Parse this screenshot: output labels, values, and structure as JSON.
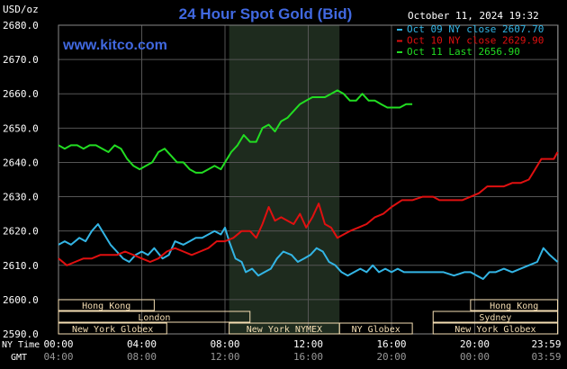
{
  "header": {
    "units": "USD/oz",
    "title": "24 Hour Spot Gold (Bid)",
    "timestamp": "October 11, 2024 19:32",
    "watermark": "www.kitco.com"
  },
  "colors": {
    "background": "#000000",
    "grid": "#555555",
    "title": "#4169e1",
    "watermark": "#4169e1",
    "axis_text": "#ffffff",
    "session_box": "#f5deb3",
    "nymex_shade": "#1e2b1e"
  },
  "legend": {
    "position": "top-right",
    "items": [
      {
        "label": "Oct 09 NY close 2607.70",
        "color": "#33b5e5"
      },
      {
        "label": "Oct 10 NY close 2629.90",
        "color": "#e01010"
      },
      {
        "label": "Oct 11 Last 2656.90",
        "color": "#22dd22"
      }
    ]
  },
  "time_rows": {
    "ny_label": "NY Time",
    "gmt_label": "GMT",
    "ny_ticks": [
      "00:00",
      "04:00",
      "08:00",
      "12:00",
      "16:00",
      "20:00",
      "23:59"
    ],
    "gmt_ticks": [
      "04:00",
      "08:00",
      "12:00",
      "16:00",
      "20:00",
      "00:00",
      "03:59"
    ]
  },
  "sessions": [
    {
      "label": "Hong Kong",
      "start_h": 0,
      "end_h": 4.6,
      "row": 0
    },
    {
      "label": "London",
      "start_h": 0,
      "end_h": 9.2,
      "row": 1
    },
    {
      "label": "New York Globex",
      "start_h": 0,
      "end_h": 5.2,
      "row": 2
    },
    {
      "label": "New York NYMEX",
      "start_h": 8.2,
      "end_h": 13.5,
      "row": 2
    },
    {
      "label": "NY Globex",
      "start_h": 13.5,
      "end_h": 17.0,
      "row": 2
    },
    {
      "label": "Hong Kong",
      "start_h": 19.8,
      "end_h": 23.98,
      "row": 0
    },
    {
      "label": "Sydney",
      "start_h": 18.0,
      "end_h": 23.98,
      "row": 1
    },
    {
      "label": "New York Globex",
      "start_h": 18.0,
      "end_h": 23.98,
      "row": 2
    }
  ],
  "chart_data": {
    "type": "line",
    "title": "24 Hour Spot Gold (Bid)",
    "ylabel": "USD/oz",
    "xlim": [
      0,
      24
    ],
    "ylim": [
      2590,
      2680
    ],
    "y_ticks": [
      2590,
      2600,
      2610,
      2620,
      2630,
      2640,
      2650,
      2660,
      2670,
      2680
    ],
    "y_tick_labels": [
      "2590.0",
      "2600.0",
      "2610.0",
      "2620.0",
      "2630.0",
      "2640.0",
      "2650.0",
      "2660.0",
      "2670.0",
      "2680.0"
    ],
    "grid": true,
    "legend_position": "top-right",
    "nymex_session_hours": [
      8.2,
      13.5
    ],
    "series": [
      {
        "name": "Oct 09 NY close 2607.70",
        "color": "#33b5e5",
        "x": [
          0,
          0.3,
          0.6,
          1.0,
          1.3,
          1.6,
          1.9,
          2.2,
          2.5,
          2.8,
          3.1,
          3.4,
          3.7,
          4.0,
          4.3,
          4.6,
          5.0,
          5.3,
          5.6,
          6.0,
          6.3,
          6.6,
          6.9,
          7.2,
          7.5,
          7.8,
          8.0,
          8.2,
          8.5,
          8.8,
          9.0,
          9.3,
          9.6,
          9.9,
          10.2,
          10.5,
          10.8,
          11.2,
          11.5,
          11.8,
          12.1,
          12.4,
          12.7,
          13.0,
          13.3,
          13.6,
          13.9,
          14.2,
          14.5,
          14.8,
          15.1,
          15.4,
          15.7,
          16.0,
          16.3,
          16.6,
          17.0,
          17.5,
          18.0,
          18.5,
          19.0,
          19.5,
          19.8,
          20.1,
          20.4,
          20.7,
          21.0,
          21.4,
          21.8,
          22.2,
          22.6,
          23.0,
          23.3,
          23.6,
          23.98
        ],
        "y": [
          2616,
          2617,
          2616,
          2618,
          2617,
          2620,
          2622,
          2619,
          2616,
          2614,
          2612,
          2611,
          2613,
          2614,
          2613,
          2615,
          2612,
          2613,
          2617,
          2616,
          2617,
          2618,
          2618,
          2619,
          2620,
          2619,
          2621,
          2617,
          2612,
          2611,
          2608,
          2609,
          2607,
          2608,
          2609,
          2612,
          2614,
          2613,
          2611,
          2612,
          2613,
          2615,
          2614,
          2611,
          2610,
          2608,
          2607,
          2608,
          2609,
          2608,
          2610,
          2608,
          2609,
          2608,
          2609,
          2608,
          2608,
          2608,
          2608,
          2608,
          2607,
          2608,
          2608,
          2607,
          2606,
          2608,
          2608,
          2609,
          2608,
          2609,
          2610,
          2611,
          2615,
          2613,
          2611
        ]
      },
      {
        "name": "Oct 10 NY close 2629.90",
        "color": "#e01010",
        "x": [
          0,
          0.4,
          0.8,
          1.2,
          1.6,
          2.0,
          2.4,
          2.8,
          3.2,
          3.6,
          4.0,
          4.4,
          4.8,
          5.2,
          5.6,
          6.0,
          6.4,
          6.8,
          7.2,
          7.6,
          8.0,
          8.4,
          8.8,
          9.2,
          9.5,
          9.8,
          10.1,
          10.4,
          10.7,
          11.0,
          11.3,
          11.6,
          11.9,
          12.2,
          12.5,
          12.8,
          13.1,
          13.4,
          13.7,
          14.0,
          14.4,
          14.8,
          15.2,
          15.6,
          16.0,
          16.5,
          17.0,
          17.5,
          18.0,
          18.3,
          18.6,
          19.0,
          19.4,
          19.8,
          20.2,
          20.6,
          21.0,
          21.4,
          21.8,
          22.2,
          22.6,
          22.9,
          23.2,
          23.5,
          23.8,
          23.98
        ],
        "y": [
          2612,
          2610,
          2611,
          2612,
          2612,
          2613,
          2613,
          2613,
          2614,
          2613,
          2612,
          2611,
          2612,
          2614,
          2615,
          2614,
          2613,
          2614,
          2615,
          2617,
          2617,
          2618,
          2620,
          2620,
          2618,
          2622,
          2627,
          2623,
          2624,
          2623,
          2622,
          2625,
          2621,
          2624,
          2628,
          2622,
          2621,
          2618,
          2619,
          2620,
          2621,
          2622,
          2624,
          2625,
          2627,
          2629,
          2629,
          2630,
          2630,
          2629,
          2629,
          2629,
          2629,
          2630,
          2631,
          2633,
          2633,
          2633,
          2634,
          2634,
          2635,
          2638,
          2641,
          2641,
          2641,
          2643
        ]
      },
      {
        "name": "Oct 11 Last 2656.90",
        "color": "#22dd22",
        "x": [
          0,
          0.3,
          0.6,
          0.9,
          1.2,
          1.5,
          1.8,
          2.1,
          2.4,
          2.7,
          3.0,
          3.3,
          3.6,
          3.9,
          4.2,
          4.5,
          4.8,
          5.1,
          5.4,
          5.7,
          6.0,
          6.3,
          6.6,
          6.9,
          7.2,
          7.5,
          7.8,
          8.0,
          8.3,
          8.6,
          8.9,
          9.2,
          9.5,
          9.8,
          10.1,
          10.4,
          10.7,
          11.0,
          11.3,
          11.6,
          11.9,
          12.2,
          12.5,
          12.8,
          13.1,
          13.4,
          13.7,
          14.0,
          14.3,
          14.6,
          14.9,
          15.2,
          15.5,
          15.8,
          16.1,
          16.4,
          16.7,
          17.0
        ],
        "y": [
          2645,
          2644,
          2645,
          2645,
          2644,
          2645,
          2645,
          2644,
          2643,
          2645,
          2644,
          2641,
          2639,
          2638,
          2639,
          2640,
          2643,
          2644,
          2642,
          2640,
          2640,
          2638,
          2637,
          2637,
          2638,
          2639,
          2638,
          2640,
          2643,
          2645,
          2648,
          2646,
          2646,
          2650,
          2651,
          2649,
          2652,
          2653,
          2655,
          2657,
          2658,
          2659,
          2659,
          2659,
          2660,
          2661,
          2660,
          2658,
          2658,
          2660,
          2658,
          2658,
          2657,
          2656,
          2656,
          2656,
          2657,
          2657
        ]
      }
    ]
  }
}
